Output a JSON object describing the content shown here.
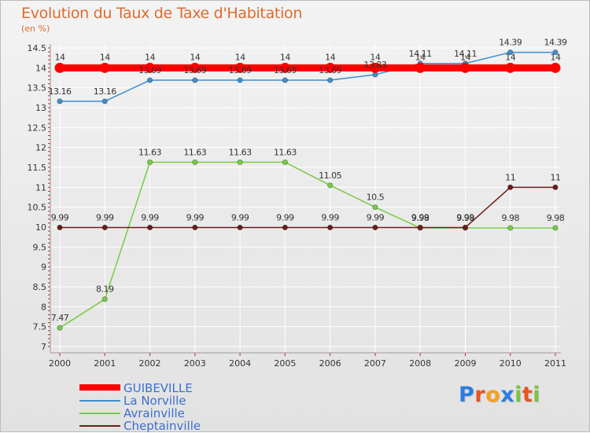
{
  "header": {
    "title": "Evolution du Taux de Taxe d'Habitation",
    "unit": "(en %)"
  },
  "chart_data": {
    "type": "line",
    "title": "Evolution du Taux de Taxe d'Habitation",
    "ylabel": "(en %)",
    "xlabel": "",
    "x": [
      "2000",
      "2001",
      "2002",
      "2003",
      "2004",
      "2005",
      "2006",
      "2007",
      "2008",
      "2009",
      "2010",
      "2011"
    ],
    "ylim": [
      7,
      14.5
    ],
    "y_ticks": [
      "7",
      "7.5",
      "8",
      "8.5",
      "9",
      "9.5",
      "10",
      "10.5",
      "11",
      "11.5",
      "12",
      "12.5",
      "13",
      "13.5",
      "14",
      "14.5"
    ],
    "y_tick_values": [
      7,
      7.5,
      8,
      8.5,
      9,
      9.5,
      10,
      10.5,
      11,
      11.5,
      12,
      12.5,
      13,
      13.5,
      14,
      14.5
    ],
    "grid": true,
    "series": [
      {
        "name": "GUIBEVILLE",
        "color": "#ff0000",
        "values": [
          14,
          14,
          14,
          14,
          14,
          14,
          14,
          14,
          14,
          14,
          14,
          14
        ],
        "labels": [
          "14",
          "14",
          "14",
          "14",
          "14",
          "14",
          "14",
          "14",
          "14",
          "14",
          "14",
          "14"
        ]
      },
      {
        "name": "La Norville",
        "color": "#3e8ed0",
        "values": [
          13.16,
          13.16,
          13.69,
          13.69,
          13.69,
          13.69,
          13.69,
          13.83,
          14.11,
          14.11,
          14.39,
          14.39
        ],
        "labels": [
          "13.16",
          "13.16",
          "13.69",
          "13.69",
          "13.69",
          "13.69",
          "13.69",
          "13.83",
          "14.11",
          "14.11",
          "14.39",
          "14.39"
        ]
      },
      {
        "name": "Avrainville",
        "color": "#77cc44",
        "values": [
          7.47,
          8.19,
          11.63,
          11.63,
          11.63,
          11.63,
          11.05,
          10.5,
          9.98,
          9.98,
          9.98,
          9.98
        ],
        "labels": [
          "7.47",
          "8.19",
          "11.63",
          "11.63",
          "11.63",
          "11.63",
          "11.05",
          "10.5",
          "9.98",
          "9.98",
          "9.98",
          "9.98"
        ]
      },
      {
        "name": "Cheptainville",
        "color": "#6e1a1a",
        "values": [
          9.99,
          9.99,
          9.99,
          9.99,
          9.99,
          9.99,
          9.99,
          9.99,
          9.99,
          9.99,
          11,
          11
        ],
        "labels": [
          "9.99",
          "9.99",
          "9.99",
          "9.99",
          "9.99",
          "9.99",
          "9.99",
          "9.99",
          "9.99",
          "9.99",
          "11",
          "11"
        ]
      }
    ],
    "legend": [
      "GUIBEVILLE",
      "La Norville",
      "Avrainville",
      "Cheptainville"
    ],
    "legend_position": "bottom-left"
  },
  "logo": {
    "text": "Proxiti",
    "letters": [
      "P",
      "r",
      "o",
      "x",
      "i",
      "t",
      "i"
    ],
    "colors": [
      "#2a7de1",
      "#e8541e",
      "#f4a21d",
      "#2a7de1",
      "#7cc242",
      "#e8541e",
      "#7cc242"
    ]
  }
}
